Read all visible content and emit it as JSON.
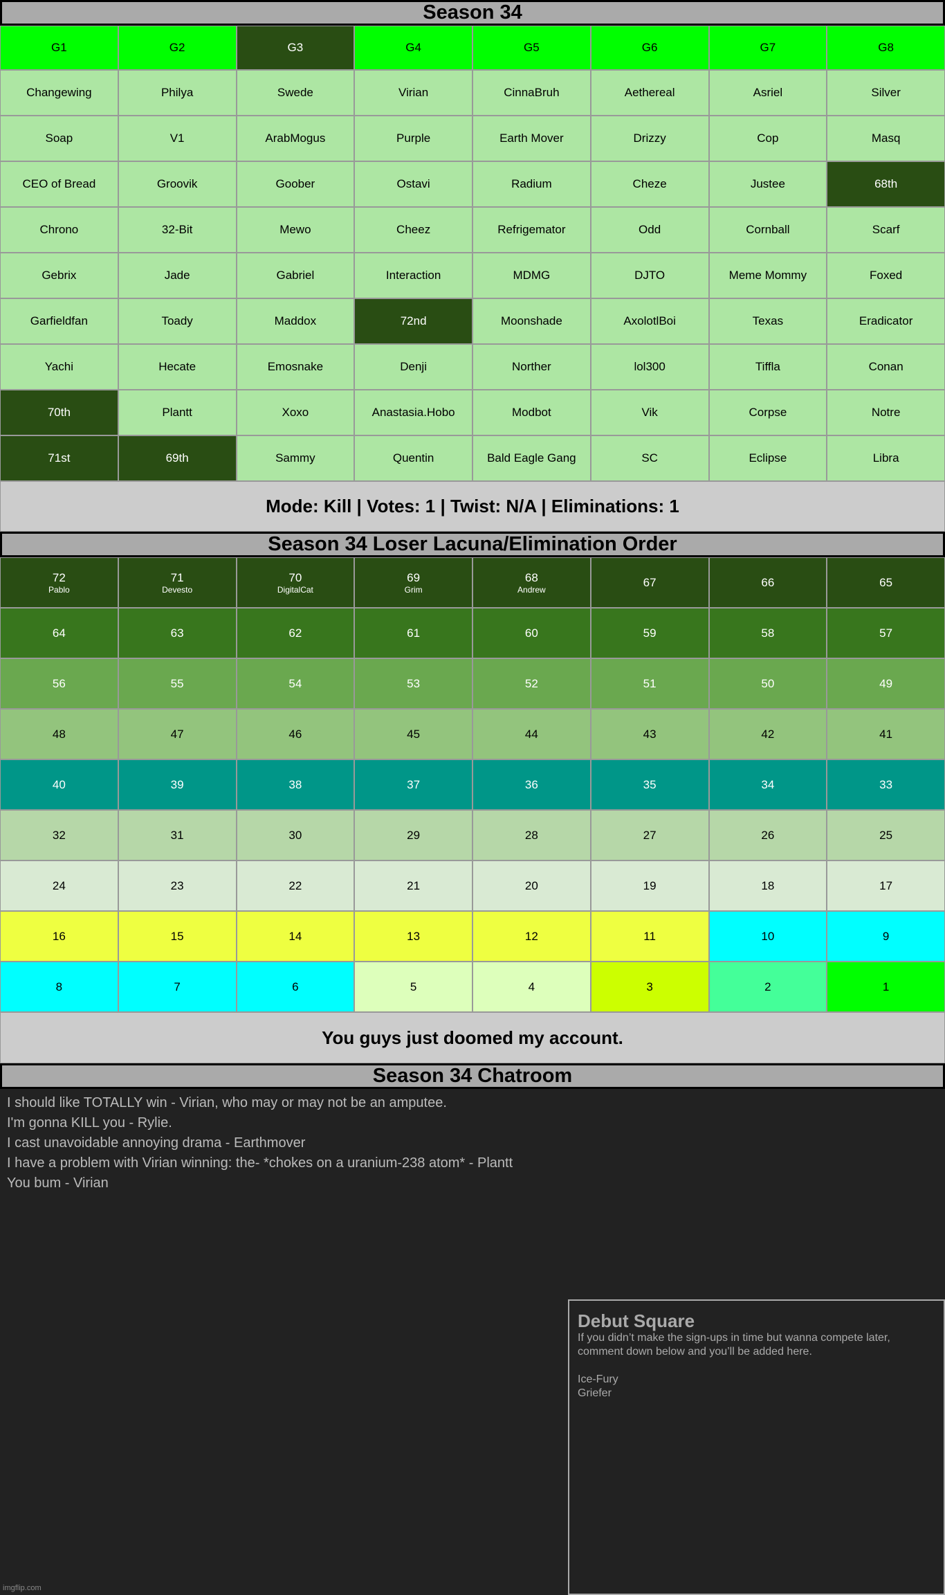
{
  "title": "Season 34",
  "groups": [
    "G1",
    "G2",
    "G3",
    "G4",
    "G5",
    "G6",
    "G7",
    "G8"
  ],
  "groups_dark": [
    2
  ],
  "roster": [
    [
      "Changewing",
      "Philya",
      "Swede",
      "Virian",
      "CinnaBruh",
      "Aethereal",
      "Asriel",
      "Silver"
    ],
    [
      "Soap",
      "V1",
      "ArabMogus",
      "Purple",
      "Earth Mover",
      "Drizzy",
      "Cop",
      "Masq"
    ],
    [
      "CEO of Bread",
      "Groovik",
      "Goober",
      "Ostavi",
      "Radium",
      "Cheze",
      "Justee",
      "68th"
    ],
    [
      "Chrono",
      "32-Bit",
      "Mewo",
      "Cheez",
      "Refrigemator",
      "Odd",
      "Cornball",
      "Scarf"
    ],
    [
      "Gebrix",
      "Jade",
      "Gabriel",
      "Interaction",
      "MDMG",
      "DJTO",
      "Meme Mommy",
      "Foxed"
    ],
    [
      "Garfieldfan",
      "Toady",
      "Maddox",
      "72nd",
      "Moonshade",
      "AxolotlBoi",
      "Texas",
      "Eradicator"
    ],
    [
      "Yachi",
      "Hecate",
      "Emosnake",
      "Denji",
      "Norther",
      "lol300",
      "Tiffla",
      "Conan"
    ],
    [
      "70th",
      "Plantt",
      "Xoxo",
      "Anastasia.Hobo",
      "Modbot",
      "Vik",
      "Corpse",
      "Notre"
    ],
    [
      "71st",
      "69th",
      "Sammy",
      "Quentin",
      "Bald Eagle Gang",
      "SC",
      "Eclipse",
      "Libra"
    ]
  ],
  "eliminated_cells": [
    "68th",
    "72nd",
    "70th",
    "71st",
    "69th"
  ],
  "status_bar": "Mode: Kill | Votes: 1 | Twist: N/A | Eliminations: 1",
  "elim_title": "Season 34 Loser Lacuna/Elimination Order",
  "elim_rows": [
    {
      "color": "#294d13",
      "text": "#fff",
      "cells": [
        {
          "n": "72",
          "name": "Pablo"
        },
        {
          "n": "71",
          "name": "Devesto"
        },
        {
          "n": "70",
          "name": "DigitalCat"
        },
        {
          "n": "69",
          "name": "Grim"
        },
        {
          "n": "68",
          "name": "Andrew"
        },
        {
          "n": "67"
        },
        {
          "n": "66"
        },
        {
          "n": "65"
        }
      ]
    },
    {
      "color": "#38761d",
      "text": "#fff",
      "cells": [
        {
          "n": "64"
        },
        {
          "n": "63"
        },
        {
          "n": "62"
        },
        {
          "n": "61"
        },
        {
          "n": "60"
        },
        {
          "n": "59"
        },
        {
          "n": "58"
        },
        {
          "n": "57"
        }
      ]
    },
    {
      "color": "#6aa84f",
      "text": "#fff",
      "cells": [
        {
          "n": "56"
        },
        {
          "n": "55"
        },
        {
          "n": "54"
        },
        {
          "n": "53"
        },
        {
          "n": "52"
        },
        {
          "n": "51"
        },
        {
          "n": "50"
        },
        {
          "n": "49"
        }
      ]
    },
    {
      "color": "#93c47d",
      "text": "#000",
      "cells": [
        {
          "n": "48"
        },
        {
          "n": "47"
        },
        {
          "n": "46"
        },
        {
          "n": "45"
        },
        {
          "n": "44"
        },
        {
          "n": "43"
        },
        {
          "n": "42"
        },
        {
          "n": "41"
        }
      ]
    },
    {
      "color": "#009688",
      "text": "#fff",
      "cells": [
        {
          "n": "40"
        },
        {
          "n": "39"
        },
        {
          "n": "38"
        },
        {
          "n": "37"
        },
        {
          "n": "36"
        },
        {
          "n": "35"
        },
        {
          "n": "34"
        },
        {
          "n": "33"
        }
      ]
    },
    {
      "color": "#b6d7a8",
      "text": "#000",
      "cells": [
        {
          "n": "32"
        },
        {
          "n": "31"
        },
        {
          "n": "30"
        },
        {
          "n": "29"
        },
        {
          "n": "28"
        },
        {
          "n": "27"
        },
        {
          "n": "26"
        },
        {
          "n": "25"
        }
      ]
    },
    {
      "color": "#d9ead3",
      "text": "#000",
      "cells": [
        {
          "n": "24"
        },
        {
          "n": "23"
        },
        {
          "n": "22"
        },
        {
          "n": "21"
        },
        {
          "n": "20"
        },
        {
          "n": "19"
        },
        {
          "n": "18"
        },
        {
          "n": "17"
        }
      ]
    },
    {
      "color": "#eeff41",
      "text": "#000",
      "cells": [
        {
          "n": "16"
        },
        {
          "n": "15"
        },
        {
          "n": "14"
        },
        {
          "n": "13"
        },
        {
          "n": "12"
        },
        {
          "n": "11"
        },
        {
          "n": "10",
          "color": "#00ffff"
        },
        {
          "n": "9",
          "color": "#00ffff"
        }
      ]
    },
    {
      "color": "#00ffff",
      "text": "#000",
      "cells": [
        {
          "n": "8"
        },
        {
          "n": "7"
        },
        {
          "n": "6"
        },
        {
          "n": "5",
          "color": "#ddffbb"
        },
        {
          "n": "4",
          "color": "#ddffbb"
        },
        {
          "n": "3",
          "color": "#ccff00"
        },
        {
          "n": "2",
          "color": "#44ff99"
        },
        {
          "n": "1",
          "color": "#00ff00"
        }
      ]
    }
  ],
  "message_bar": "You guys just doomed my account.",
  "chat_title": "Season 34 Chatroom",
  "chat": [
    "I should like TOTALLY win - Virian, who may or may not be an amputee.",
    "I'm gonna KILL you - Rylie.",
    "I cast unavoidable annoying drama - Earthmover",
    "I have a problem with Virian winning: the- *chokes on a uranium-238 atom* - Plantt",
    "You bum - Virian"
  ],
  "debut": {
    "title": "Debut Square",
    "body": "If you didn’t make the sign-ups in time but wanna compete later, comment down below and you’ll be added here.",
    "names": [
      "Ice-Fury",
      "Griefer"
    ]
  },
  "watermark": "imgflip.com"
}
